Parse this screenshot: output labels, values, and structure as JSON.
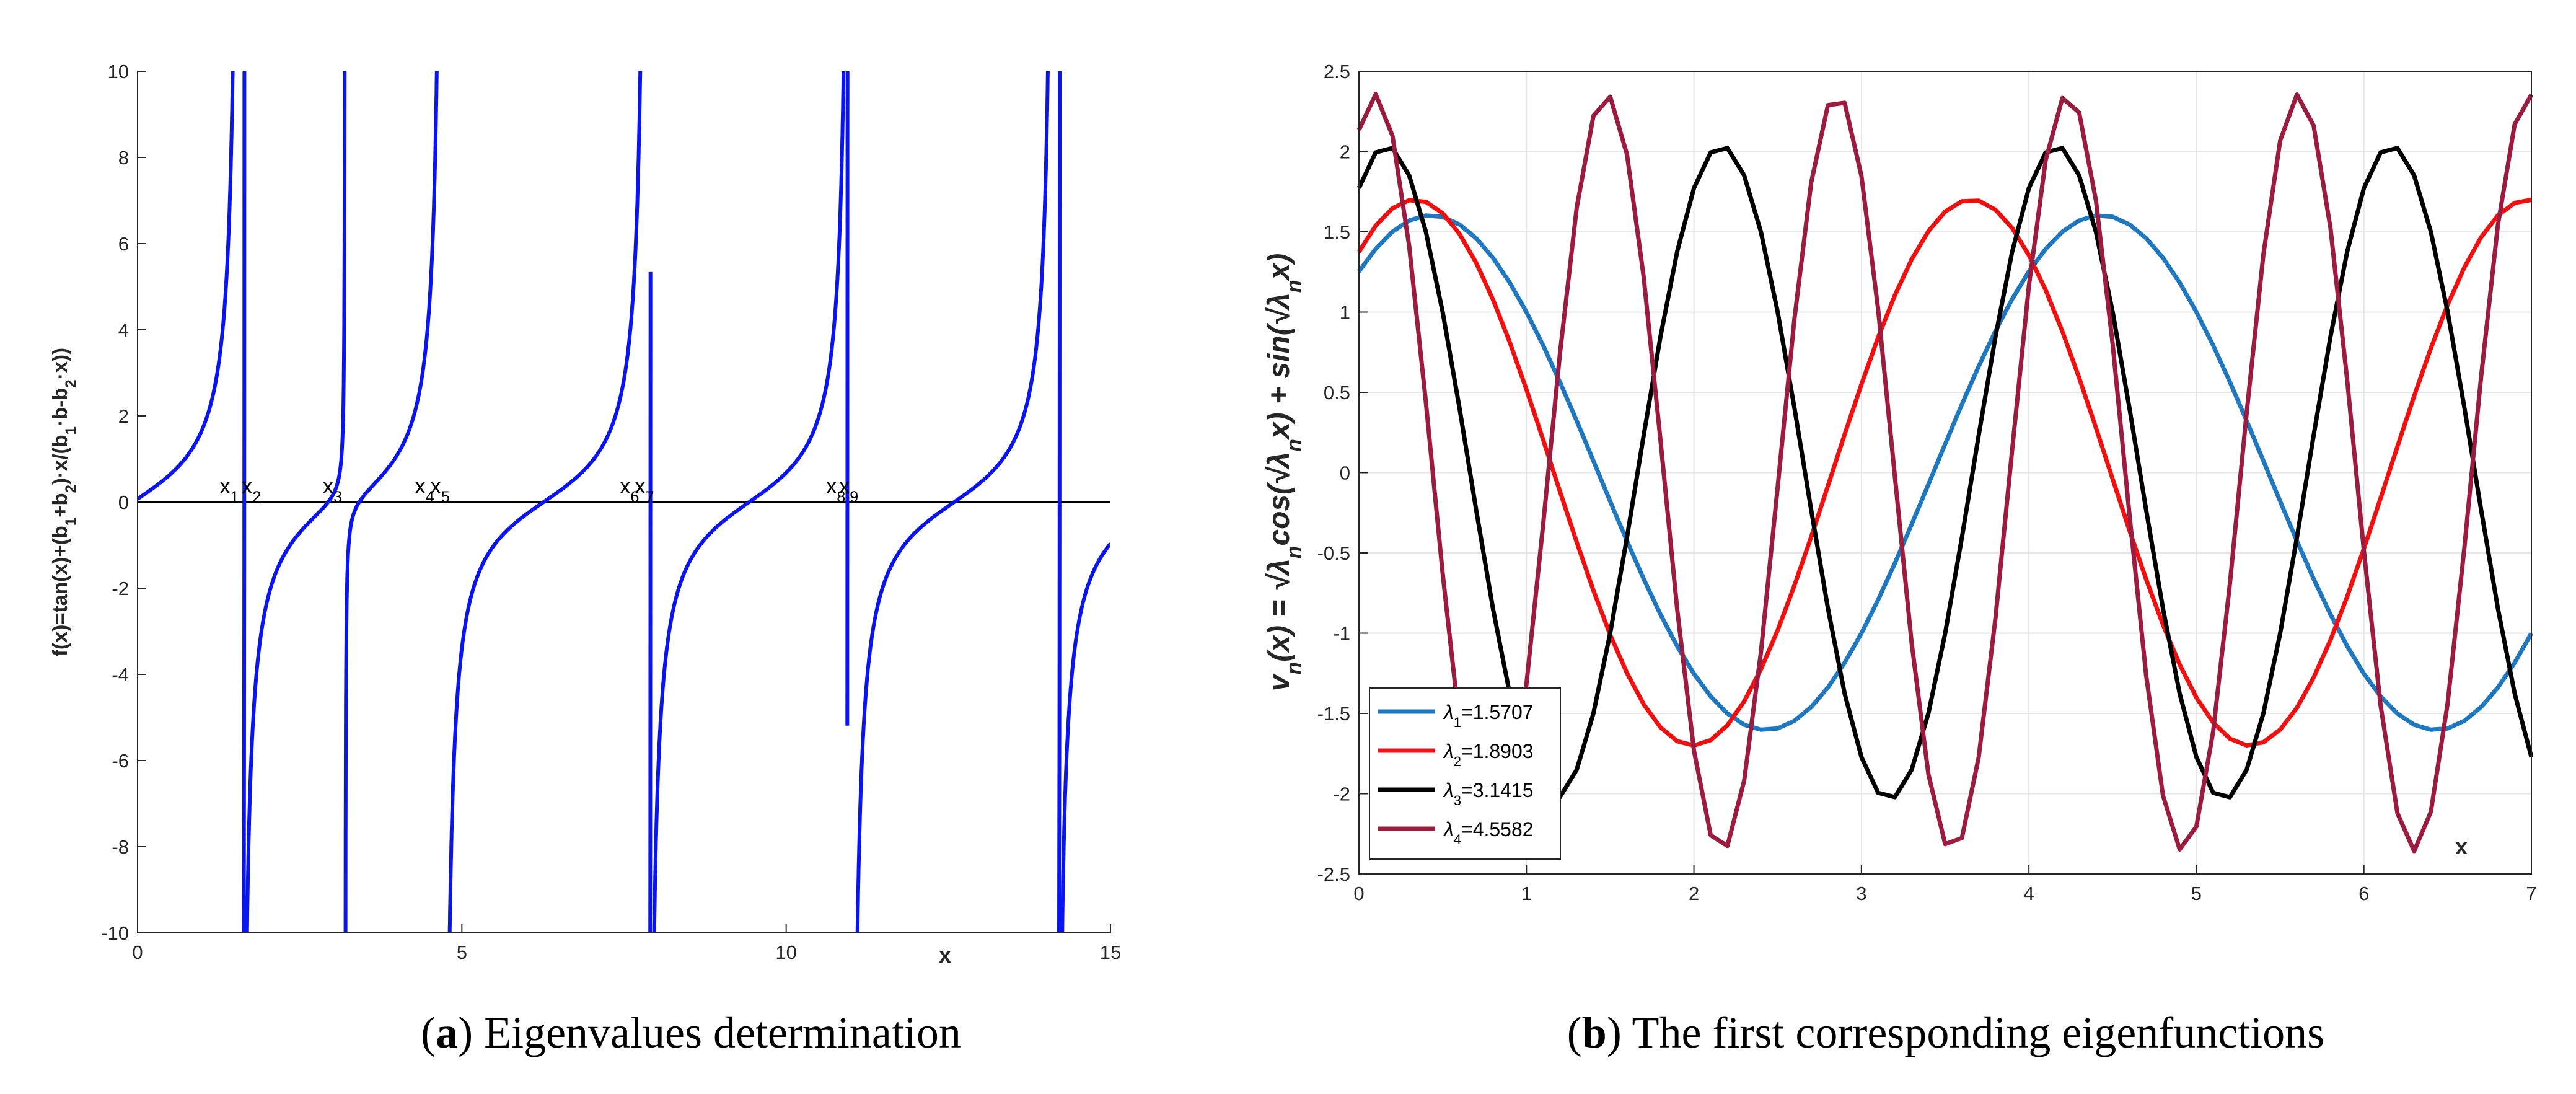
{
  "colors": {
    "panel_a_curve": "#0a14f0",
    "lambda1": "#1f77c0",
    "lambda2": "#f01010",
    "lambda3": "#000000",
    "lambda4": "#9b1c3e",
    "grid": "#e6e6e6",
    "axis": "#262626"
  },
  "chart_data": [
    {
      "id": "a",
      "type": "line",
      "title": "",
      "caption": {
        "label": "a",
        "text": " Eigenvalues determination"
      },
      "xlabel": "x",
      "ylabel": "f(x)=tan(x)+(b1+b2)·x/(b1·b-b2·x))",
      "xlim": [
        0,
        15
      ],
      "ylim": [
        -10,
        10
      ],
      "xticks": [
        0,
        5,
        10,
        15
      ],
      "yticks": [
        -10,
        -8,
        -6,
        -4,
        -2,
        0,
        2,
        4,
        6,
        8,
        10
      ],
      "grid": false,
      "series": [
        {
          "name": "f(x)",
          "function": "tan(x) + 0.5*x/(b - x)",
          "poles_tan": [
            1.5708,
            4.7124,
            7.854,
            10.9956,
            14.1372
          ],
          "poles_rational": [
            1.65,
            3.2,
            7.91,
            10.94,
            14.22
          ],
          "values_description": "piecewise curve crossing zero at roots x1..x9"
        }
      ],
      "roots": [
        {
          "label": "x",
          "sub": "1",
          "x": 1.55
        },
        {
          "label": "x",
          "sub": "2",
          "x": 1.89
        },
        {
          "label": "x",
          "sub": "3",
          "x": 3.14
        },
        {
          "label": "x",
          "sub": "4",
          "x": 4.56
        },
        {
          "label": "x",
          "sub": "5",
          "x": 4.8
        },
        {
          "label": "x",
          "sub": "6",
          "x": 7.72
        },
        {
          "label": "x",
          "sub": "7",
          "x": 7.95
        },
        {
          "label": "x",
          "sub": "8",
          "x": 10.9
        },
        {
          "label": "x",
          "sub": "9",
          "x": 11.1
        }
      ]
    },
    {
      "id": "b",
      "type": "line",
      "title": "",
      "caption": {
        "label": "b",
        "text": " The first corresponding eigenfunctions"
      },
      "xlabel": "x",
      "ylabel": "v_n(x) = √λn cos(√λn x) + sin(√λn x)",
      "xlim": [
        0,
        7
      ],
      "ylim": [
        -2.5,
        2.5
      ],
      "xticks": [
        0,
        1,
        2,
        3,
        4,
        5,
        6,
        7
      ],
      "yticks": [
        -2.5,
        -2,
        -1.5,
        -1,
        -0.5,
        0,
        0.5,
        1,
        1.5,
        2,
        2.5
      ],
      "grid": true,
      "legend_position": "bottom-left",
      "series": [
        {
          "name": "λ1=1.5707",
          "sym": "λ",
          "sub": "1",
          "value_text": "=1.5707",
          "lambda": 1.5707,
          "color_key": "lambda1"
        },
        {
          "name": "λ2=1.8903",
          "sym": "λ",
          "sub": "2",
          "value_text": "=1.8903",
          "lambda": 1.8903,
          "color_key": "lambda2"
        },
        {
          "name": "λ3=3.1415",
          "sym": "λ",
          "sub": "3",
          "value_text": "=3.1415",
          "lambda": 3.1415,
          "color_key": "lambda3"
        },
        {
          "name": "λ4=4.5582",
          "sym": "λ",
          "sub": "4",
          "value_text": "=4.5582",
          "lambda": 4.5582,
          "color_key": "lambda4"
        }
      ]
    }
  ]
}
